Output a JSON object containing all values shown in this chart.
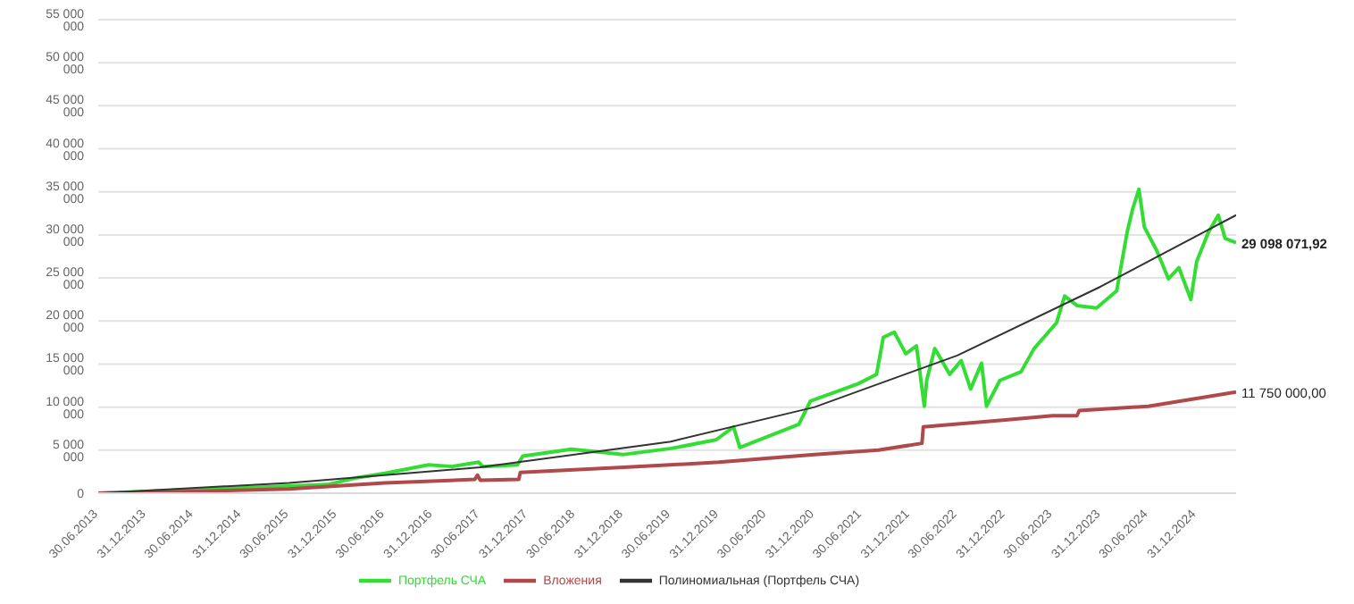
{
  "chart_data": {
    "type": "line",
    "xlim": [
      "2013-06-30",
      "2025-06-01"
    ],
    "xticks": [
      {
        "value": "2013-06-30",
        "label": "30.06.2013"
      },
      {
        "value": "2013-12-31",
        "label": "31.12.2013"
      },
      {
        "value": "2014-06-30",
        "label": "30.06.2014"
      },
      {
        "value": "2014-12-31",
        "label": "31.12.2014"
      },
      {
        "value": "2015-06-30",
        "label": "30.06.2015"
      },
      {
        "value": "2015-12-31",
        "label": "31.12.2015"
      },
      {
        "value": "2016-06-30",
        "label": "30.06.2016"
      },
      {
        "value": "2016-12-31",
        "label": "31.12.2016"
      },
      {
        "value": "2017-06-30",
        "label": "30.06.2017"
      },
      {
        "value": "2017-12-31",
        "label": "31.12.2017"
      },
      {
        "value": "2018-06-30",
        "label": "30.06.2018"
      },
      {
        "value": "2018-12-31",
        "label": "31.12.2018"
      },
      {
        "value": "2019-06-30",
        "label": "30.06.2019"
      },
      {
        "value": "2019-12-31",
        "label": "31.12.2019"
      },
      {
        "value": "2020-06-30",
        "label": "30.06.2020"
      },
      {
        "value": "2020-12-31",
        "label": "31.12.2020"
      },
      {
        "value": "2021-06-30",
        "label": "30.06.2021"
      },
      {
        "value": "2021-12-31",
        "label": "31.12.2021"
      },
      {
        "value": "2022-06-30",
        "label": "30.06.2022"
      },
      {
        "value": "2022-12-31",
        "label": "31.12.2022"
      },
      {
        "value": "2023-06-30",
        "label": "30.06.2023"
      },
      {
        "value": "2023-12-31",
        "label": "31.12.2023"
      },
      {
        "value": "2024-06-30",
        "label": "30.06.2024"
      },
      {
        "value": "2024-12-31",
        "label": "31.12.2024"
      }
    ],
    "ylim": [
      0,
      55000000
    ],
    "yticks": [
      0,
      {
        "value": 5000000,
        "label": "5 000 000"
      },
      {
        "value": 10000000,
        "label": "10 000 000"
      },
      {
        "value": 15000000,
        "label": "15 000 000"
      },
      {
        "value": 20000000,
        "label": "20 000 000"
      },
      {
        "value": 25000000,
        "label": "25 000 000"
      },
      {
        "value": 30000000,
        "label": "30 000 000"
      },
      {
        "value": 35000000,
        "label": "35 000 000"
      },
      {
        "value": 40000000,
        "label": "40 000 000"
      },
      {
        "value": 45000000,
        "label": "45 000 000"
      },
      {
        "value": 50000000,
        "label": "50 000 000"
      },
      {
        "value": 55000000,
        "label": "55 000 000"
      }
    ],
    "grid": "y",
    "legend": "bottom",
    "marker": "none",
    "line_style": "solid",
    "annotations": [
      {
        "text": "29 098 071,92",
        "x": "2025-06-01",
        "y": 29098071.92
      },
      {
        "text": "11 750 000,00",
        "x": "2025-06-01",
        "y": 11750000
      }
    ],
    "series": [
      {
        "name": "Портфель СЧА",
        "color": "#33dd33",
        "x": [
          "2013-06-30",
          "2014-01-01",
          "2014-12-15",
          "2015-11-25",
          "2016-03-15",
          "2016-07-01",
          "2016-12-15",
          "2017-03-15",
          "2017-06-25",
          "2017-07-10",
          "2017-11-20",
          "2017-12-10",
          "2018-06-15",
          "2018-12-31",
          "2019-07-01",
          "2019-12-20",
          "2020-02-25",
          "2020-03-20",
          "2020-11-01",
          "2020-12-15",
          "2021-06-15",
          "2021-08-25",
          "2021-09-20",
          "2021-11-01",
          "2021-12-15",
          "2022-01-25",
          "2022-02-24",
          "2022-03-05",
          "2022-04-05",
          "2022-06-01",
          "2022-07-15",
          "2022-08-20",
          "2022-10-01",
          "2022-10-20",
          "2022-12-10",
          "2023-03-01",
          "2023-04-20",
          "2023-07-15",
          "2023-08-15",
          "2023-10-01",
          "2023-12-15",
          "2024-03-01",
          "2024-04-10",
          "2024-05-01",
          "2024-05-25",
          "2024-06-15",
          "2024-08-01",
          "2024-09-15",
          "2024-10-25",
          "2024-12-10",
          "2025-01-01",
          "2025-02-15",
          "2025-03-25",
          "2025-04-20",
          "2025-06-01"
        ],
        "values": [
          0,
          200000,
          600000,
          1000000,
          1800000,
          2300000,
          3300000,
          3100000,
          3600000,
          3100000,
          3300000,
          4300000,
          5100000,
          4500000,
          5200000,
          6200000,
          7700000,
          5300000,
          8000000,
          10700000,
          12700000,
          13800000,
          18100000,
          18700000,
          16200000,
          17100000,
          10100000,
          13100000,
          16800000,
          13800000,
          15400000,
          12100000,
          15100000,
          10100000,
          13100000,
          14100000,
          16800000,
          19800000,
          22900000,
          21800000,
          21500000,
          23500000,
          30300000,
          33000000,
          35300000,
          30900000,
          28200000,
          24900000,
          26200000,
          22500000,
          26900000,
          30300000,
          32300000,
          29600000,
          29098071.92
        ]
      },
      {
        "name": "Вложения",
        "color": "#b04a4a",
        "x": [
          "2013-06-30",
          "2014-06-30",
          "2015-06-30",
          "2016-06-30",
          "2017-06-10",
          "2017-06-20",
          "2017-07-01",
          "2017-11-25",
          "2017-12-01",
          "2018-12-31",
          "2019-12-31",
          "2020-12-31",
          "2021-09-01",
          "2022-02-15",
          "2022-02-20",
          "2022-12-31",
          "2023-06-30",
          "2023-10-01",
          "2023-10-10",
          "2024-06-30",
          "2024-12-31",
          "2025-06-01"
        ],
        "values": [
          0,
          200000,
          500000,
          1200000,
          1600000,
          2100000,
          1500000,
          1600000,
          2400000,
          3000000,
          3600000,
          4500000,
          5000000,
          5800000,
          7700000,
          8500000,
          9000000,
          9000000,
          9600000,
          10100000,
          11000000,
          11750000
        ]
      },
      {
        "name": "Полиномиальная (Портфель СЧА)",
        "color": "#333333",
        "x": [
          "2013-06-30",
          "2015-06-30",
          "2017-06-30",
          "2019-06-30",
          "2020-12-31",
          "2022-06-30",
          "2023-12-31",
          "2025-06-01"
        ],
        "values": [
          0,
          1200000,
          3000000,
          6000000,
          10000000,
          16000000,
          24000000,
          32300000
        ]
      }
    ]
  }
}
